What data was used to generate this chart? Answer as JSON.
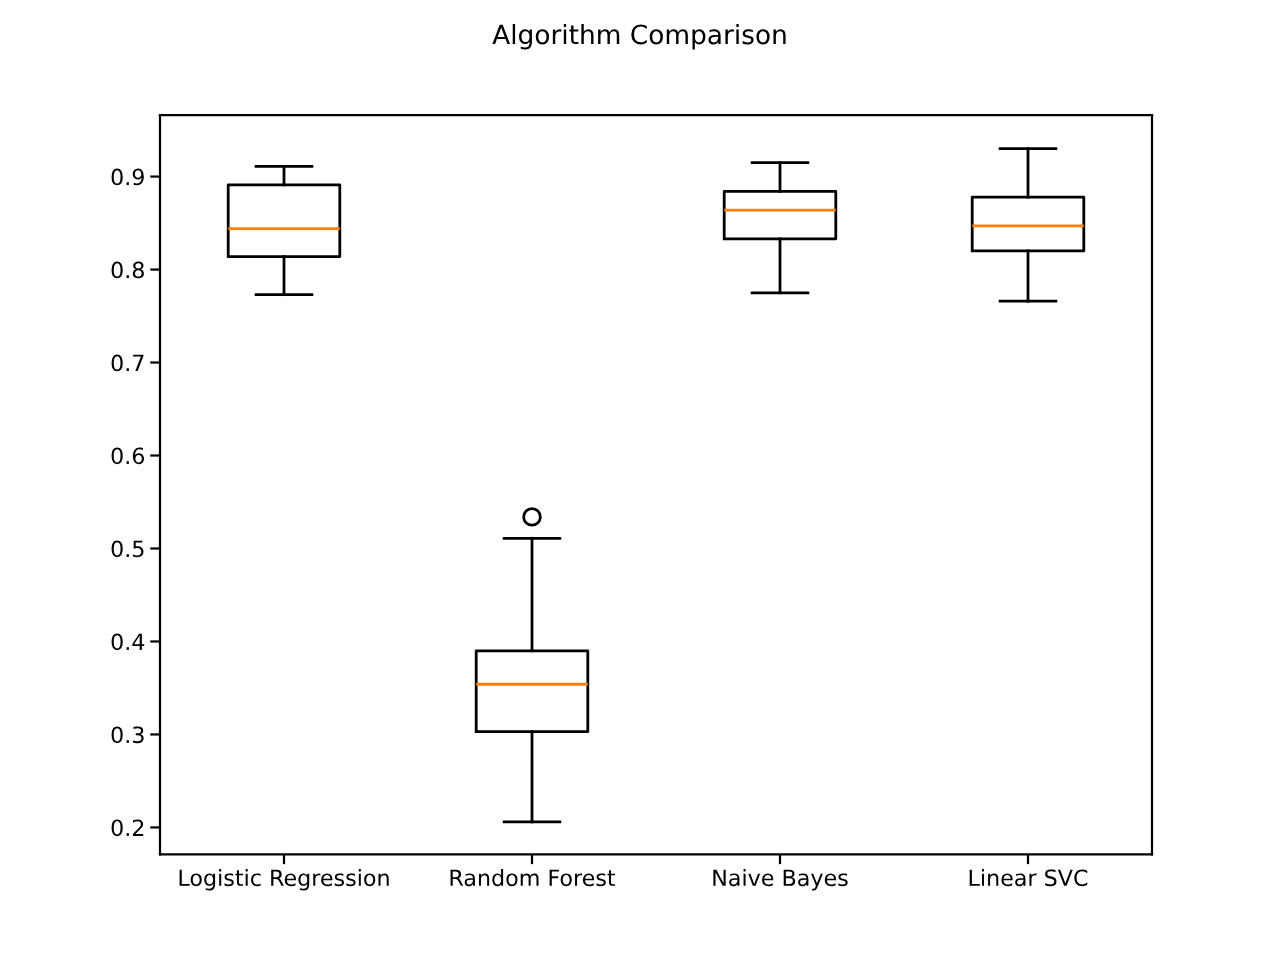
{
  "chart_data": {
    "type": "box",
    "title": "Algorithm Comparison",
    "categories": [
      "Logistic Regression",
      "Random Forest",
      "Naive Bayes",
      "Linear SVC"
    ],
    "boxes": [
      {
        "low": 0.773,
        "q1": 0.814,
        "median": 0.844,
        "q3": 0.891,
        "high": 0.911
      },
      {
        "low": 0.206,
        "q1": 0.303,
        "median": 0.354,
        "q3": 0.39,
        "high": 0.511,
        "outliers": [
          0.534
        ]
      },
      {
        "low": 0.775,
        "q1": 0.833,
        "median": 0.864,
        "q3": 0.884,
        "high": 0.915
      },
      {
        "low": 0.766,
        "q1": 0.82,
        "median": 0.847,
        "q3": 0.878,
        "high": 0.93
      }
    ],
    "color": "#000000",
    "ylim": [
      0.171,
      0.966
    ],
    "yticks": [
      0.2,
      0.3,
      0.4,
      0.5,
      0.6,
      0.7,
      0.8,
      0.9
    ],
    "grid": false
  }
}
